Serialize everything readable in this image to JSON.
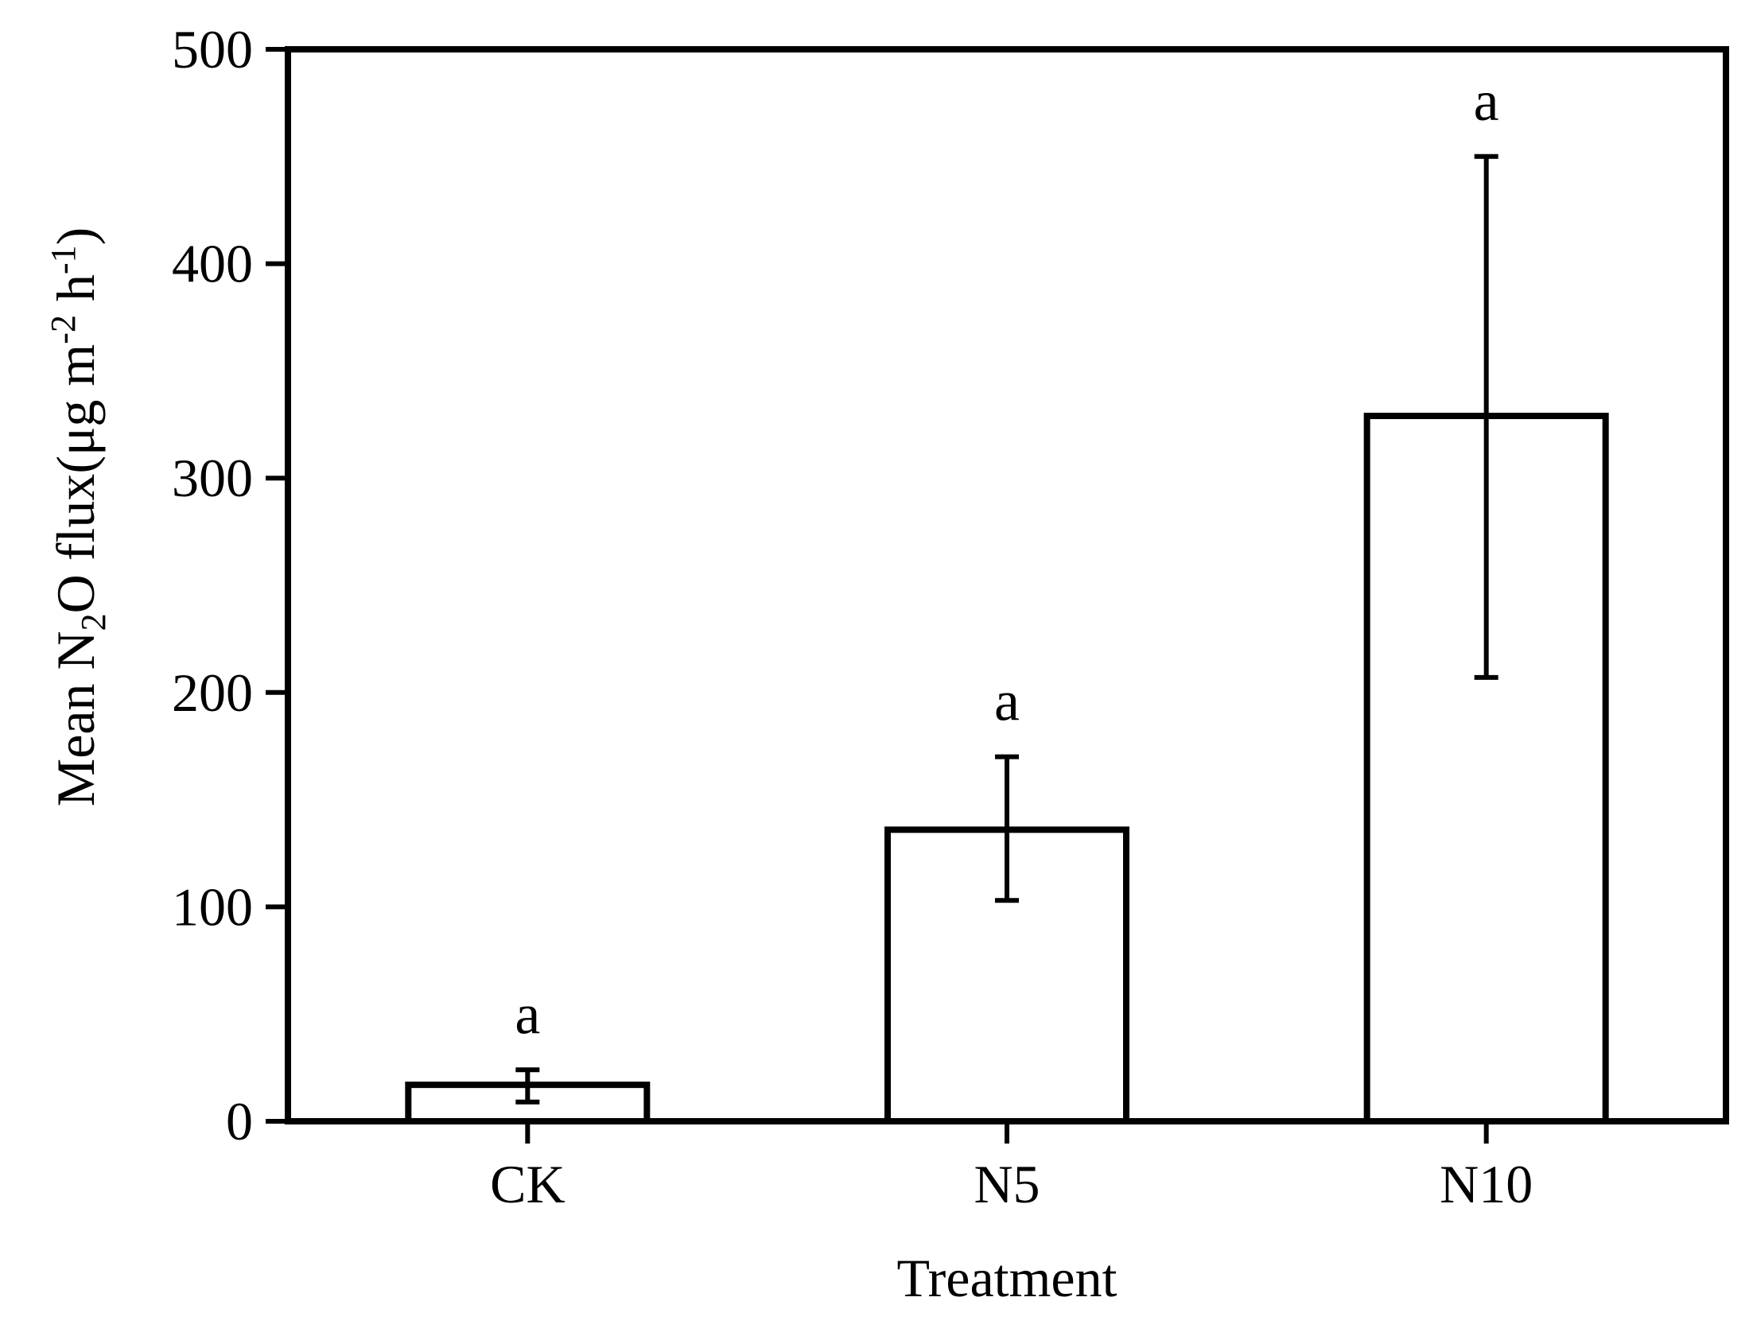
{
  "figure": {
    "background_color": "#ffffff",
    "ink_color": "#000000"
  },
  "chart_data": {
    "type": "bar",
    "title": "",
    "xlabel": "Treatment",
    "ylabel": "Mean N2O flux(μg m-2 h-1)",
    "ylabel_parts": [
      {
        "text": "Mean N",
        "script": "normal"
      },
      {
        "text": "2",
        "script": "sub"
      },
      {
        "text": "O flux(μg m",
        "script": "normal"
      },
      {
        "text": "-2",
        "script": "sup"
      },
      {
        "text": " h",
        "script": "normal"
      },
      {
        "text": "-1",
        "script": "sup"
      },
      {
        "text": ")",
        "script": "normal"
      }
    ],
    "categories": [
      "CK",
      "N5",
      "N10"
    ],
    "values": [
      17,
      136,
      329
    ],
    "error_low": [
      9,
      103,
      207
    ],
    "error_high": [
      24,
      170,
      450
    ],
    "sig_letters": [
      "a",
      "a",
      "a"
    ],
    "ylim": [
      0,
      500
    ],
    "yticks": [
      0,
      100,
      200,
      300,
      400,
      500
    ],
    "ytick_labels": [
      "0",
      "100",
      "200",
      "300",
      "400",
      "500"
    ],
    "bar_fill": "#ffffff",
    "bar_stroke": "#000000",
    "grid": false,
    "legend": "none",
    "frame": "full-box"
  }
}
